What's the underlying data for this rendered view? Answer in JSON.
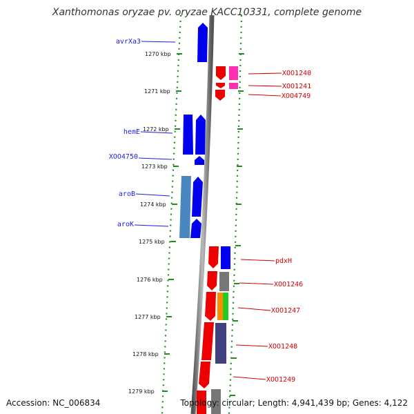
{
  "title": "Xanthomonas oryzae pv. oryzae KACC10331, complete genome",
  "footer": {
    "accession": "Accession: NC_006834",
    "topology": "Topology: circular; Length: 4,941,439 bp; Genes: 4,122"
  },
  "colors": {
    "backbone": "#8a8a8a",
    "ruler": "#1e8c1e",
    "left_label": "#1a1ae6",
    "right_label": "#d40000"
  },
  "scale_labels": [
    "1270 kbp",
    "1271 kbp",
    "1272 kbp",
    "1273 kbp",
    "1274 kbp",
    "1275 kbp",
    "1276 kbp",
    "1277 kbp",
    "1278 kbp",
    "1279 kbp"
  ],
  "left_genes": [
    {
      "name": "avrXa3",
      "color": "#0000ee"
    },
    {
      "name": "hemE",
      "color": "#0000ee"
    },
    {
      "name": "XOO4750",
      "color": "#0000ee"
    },
    {
      "name": "aroB",
      "color": "#0000ee"
    },
    {
      "name": "aroK",
      "color": "#0000ee"
    }
  ],
  "right_genes": [
    {
      "name": "XOO1240",
      "color": "#ee0000"
    },
    {
      "name": "XOO1241",
      "color": "#ee0000"
    },
    {
      "name": "XOO4749",
      "color": "#ee0000"
    },
    {
      "name": "pdxH",
      "color": "#ee0000"
    },
    {
      "name": "XOO1246",
      "color": "#ee0000"
    },
    {
      "name": "XOO1247",
      "color": "#ee0000"
    },
    {
      "name": "XOO1248",
      "color": "#ee0000"
    },
    {
      "name": "XOO1249",
      "color": "#ee0000"
    }
  ]
}
